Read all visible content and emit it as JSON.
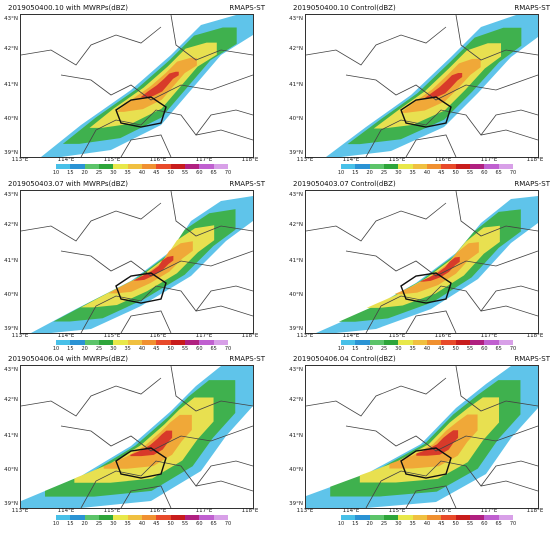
{
  "colorbar": {
    "colors": [
      "#48c0e8",
      "#2a93d4",
      "#5cc46a",
      "#2ea53a",
      "#e8e84a",
      "#f0c040",
      "#f09030",
      "#e84a2a",
      "#c81c1c",
      "#b02080",
      "#c060d0",
      "#d8a0e8"
    ],
    "labels": [
      "10",
      "15",
      "20",
      "25",
      "30",
      "35",
      "40",
      "45",
      "50",
      "55",
      "60",
      "65",
      "70"
    ]
  },
  "lat_labels": [
    "43°N",
    "42°N",
    "41°N",
    "40°N",
    "39°N"
  ],
  "lon_labels": [
    "113°E",
    "114°E",
    "115°E",
    "116°E",
    "117°E",
    "118°E"
  ],
  "panels": [
    {
      "title": "2019050400.10 with MWRPs(dBZ)",
      "tag": "RMAPS-ST"
    },
    {
      "title": "2019050400.10 Control(dBZ)",
      "tag": "RMAPS-ST"
    },
    {
      "title": "2019050403.07 with MWRPs(dBZ)",
      "tag": "RMAPS-ST"
    },
    {
      "title": "2019050403.07 Control(dBZ)",
      "tag": "RMAPS-ST"
    },
    {
      "title": "2019050406.04 with MWRPs(dBZ)",
      "tag": "RMAPS-ST"
    },
    {
      "title": "2019050406.04 Control(dBZ)",
      "tag": "RMAPS-ST"
    }
  ]
}
